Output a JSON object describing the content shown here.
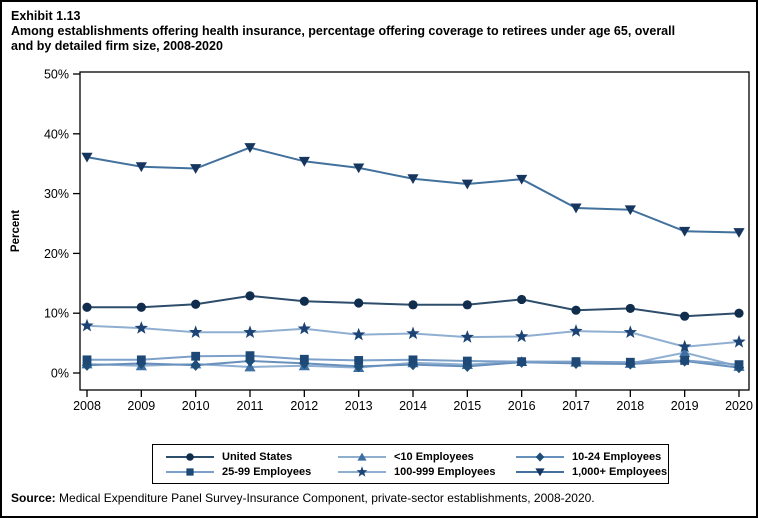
{
  "page": {
    "exhibit_label": "Exhibit 1.13",
    "title_line1": "Among establishments offering health insurance, percentage offering coverage to retirees under age 65, overall",
    "title_line2": "and by detailed firm size, 2008-2020",
    "source_label": "Source:",
    "source_text": " Medical Expenditure Panel Survey-Insurance Component, private-sector establishments, 2008-2020."
  },
  "chart_data": {
    "type": "line",
    "title": "Exhibit 1.13. Among establishments offering health insurance, percentage offering coverage to retirees under age 65, overall and by detailed firm size, 2008-2020",
    "xlabel": "",
    "ylabel": "Percent",
    "ylim": [
      0,
      50
    ],
    "grid": false,
    "legend_position": "bottom",
    "y_tick_labels": [
      "0%",
      "10%",
      "20%",
      "30%",
      "40%",
      "50%"
    ],
    "y_tick_values": [
      0,
      10,
      20,
      30,
      40,
      50
    ],
    "categories": [
      "2008",
      "2009",
      "2010",
      "2011",
      "2012",
      "2013",
      "2014",
      "2015",
      "2016",
      "2017",
      "2018",
      "2019",
      "2020"
    ],
    "series": [
      {
        "name": "United States",
        "marker": "circle",
        "line_color": "#2E4D6B",
        "marker_color": "#112D4E",
        "values": [
          11.0,
          11.0,
          11.5,
          12.9,
          12.0,
          11.7,
          11.4,
          11.4,
          12.3,
          10.5,
          10.8,
          9.5,
          10.0
        ]
      },
      {
        "name": "<10 Employees",
        "marker": "triangle-up",
        "line_color": "#8FAFD1",
        "marker_color": "#3E6FA3",
        "values": [
          1.5,
          1.2,
          1.5,
          1.0,
          1.2,
          0.9,
          1.7,
          1.4,
          1.9,
          1.8,
          1.6,
          3.4,
          1.1
        ]
      },
      {
        "name": "10-24 Employees",
        "marker": "diamond",
        "line_color": "#6890BC",
        "marker_color": "#1F4E79",
        "values": [
          1.3,
          1.6,
          1.3,
          2.0,
          1.6,
          1.1,
          1.4,
          1.1,
          1.8,
          1.6,
          1.5,
          2.0,
          0.9
        ]
      },
      {
        "name": "25-99 Employees",
        "marker": "square",
        "line_color": "#7BA0C9",
        "marker_color": "#1E4876",
        "values": [
          2.2,
          2.2,
          2.8,
          2.9,
          2.3,
          2.1,
          2.2,
          2.0,
          1.9,
          1.9,
          1.8,
          2.1,
          1.4
        ]
      },
      {
        "name": "100-999 Employees",
        "marker": "star",
        "line_color": "#8FAFD1",
        "marker_color": "#1C4374",
        "values": [
          7.9,
          7.5,
          6.8,
          6.8,
          7.4,
          6.4,
          6.6,
          6.0,
          6.1,
          7.0,
          6.8,
          4.4,
          5.2
        ]
      },
      {
        "name": "1,000+ Employees",
        "marker": "triangle-down",
        "line_color": "#41719C",
        "marker_color": "#16365F",
        "values": [
          36.1,
          34.5,
          34.2,
          37.7,
          35.4,
          34.3,
          32.5,
          31.6,
          32.4,
          27.6,
          27.3,
          23.7,
          23.5
        ]
      }
    ]
  }
}
